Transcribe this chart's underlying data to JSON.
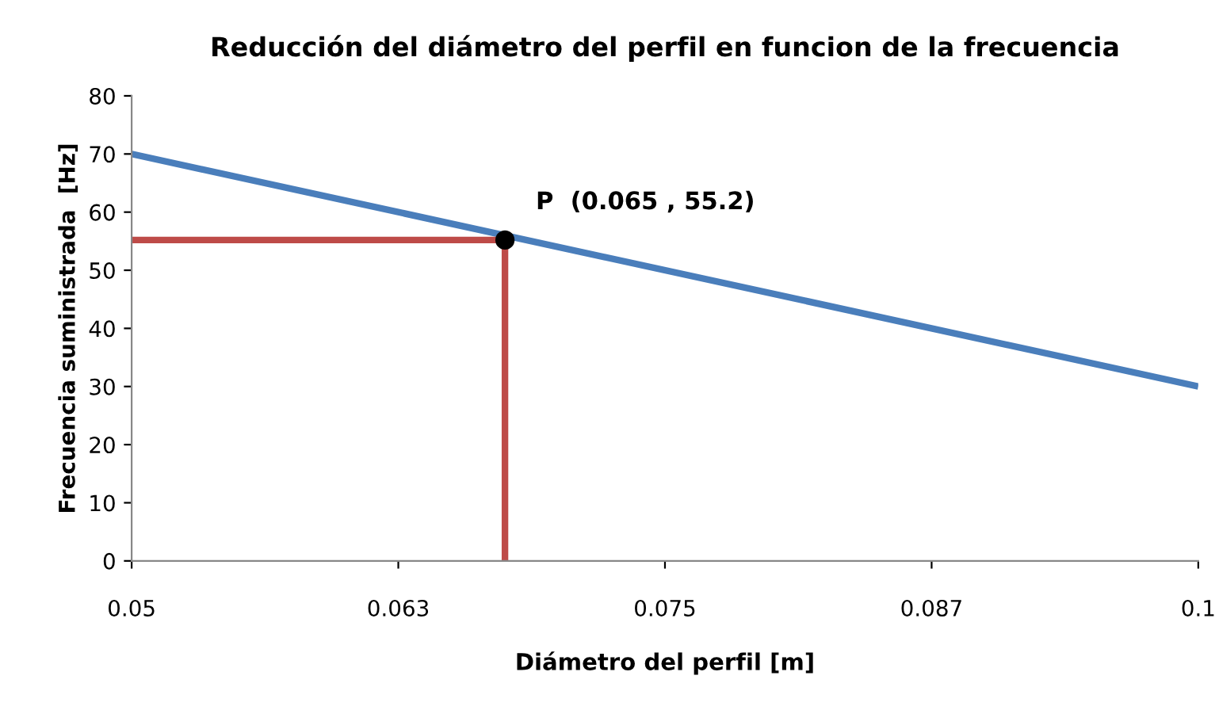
{
  "chart_data": {
    "type": "line",
    "title": "Reducción del diámetro del perfil en funcion de la frecuencia",
    "xlabel": "Diámetro del perfil [m]",
    "ylabel": "Frecuencia suministrada  [Hz]",
    "series": [
      {
        "color": "#4a7ebb",
        "x": [
          0.05,
          0.1
        ],
        "values": [
          70,
          30
        ]
      },
      {
        "color": "#be4b48",
        "x": [
          0.05,
          0.0675,
          0.0675
        ],
        "values": [
          55.2,
          55.2,
          0
        ]
      },
      {
        "type": "scatter",
        "color": "#000000",
        "x": [
          0.0675
        ],
        "values": [
          55.2
        ]
      }
    ],
    "annotations": [
      {
        "text": "P  (0.065 , 55.2)",
        "x": 0.0675,
        "y": 55.2
      }
    ],
    "xlim": [
      0.05,
      0.1
    ],
    "xticks": [
      0.05,
      {
        "value": 0.0625,
        "label": "0.063"
      },
      0.075,
      {
        "value": 0.0875,
        "label": "0.087"
      },
      0.1
    ],
    "ylim": [
      0,
      80
    ],
    "yticks": [
      0,
      10,
      20,
      30,
      40,
      50,
      60,
      70,
      80
    ],
    "grid": false,
    "legend": false
  }
}
